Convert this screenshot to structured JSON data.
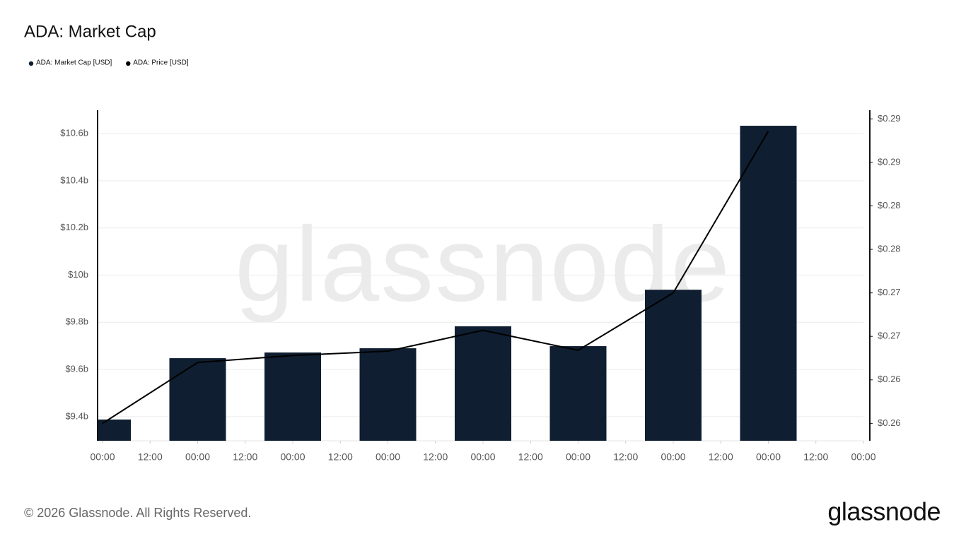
{
  "chart_data": {
    "type": "bar",
    "title": "ADA: Market Cap",
    "x": [
      0,
      24,
      48,
      72,
      96,
      120,
      144,
      168
    ],
    "xlim": [
      -1.25,
      192
    ],
    "xticks": [
      {
        "value": 0,
        "label": "00:00"
      },
      {
        "value": 12,
        "label": "12:00"
      },
      {
        "value": 24,
        "label": "00:00"
      },
      {
        "value": 36,
        "label": "12:00"
      },
      {
        "value": 48,
        "label": "00:00"
      },
      {
        "value": 60,
        "label": "12:00"
      },
      {
        "value": 72,
        "label": "00:00"
      },
      {
        "value": 84,
        "label": "12:00"
      },
      {
        "value": 96,
        "label": "00:00"
      },
      {
        "value": 108,
        "label": "12:00"
      },
      {
        "value": 120,
        "label": "00:00"
      },
      {
        "value": 132,
        "label": "12:00"
      },
      {
        "value": 144,
        "label": "00:00"
      },
      {
        "value": 156,
        "label": "12:00"
      },
      {
        "value": 168,
        "label": "00:00"
      },
      {
        "value": 180,
        "label": "12:00"
      },
      {
        "value": 192,
        "label": "00:00"
      }
    ],
    "ylim": [
      9298000000,
      10699000000
    ],
    "yticks": [
      {
        "value": 9400000000,
        "label": "$9.4b"
      },
      {
        "value": 9600000000,
        "label": "$9.6b"
      },
      {
        "value": 9800000000,
        "label": "$9.8b"
      },
      {
        "value": 10000000000,
        "label": "$10b"
      },
      {
        "value": 10200000000,
        "label": "$10.2b"
      },
      {
        "value": 10400000000,
        "label": "$10.4b"
      },
      {
        "value": 10600000000,
        "label": "$10.6b"
      }
    ],
    "y2lim": [
      0.2555,
      0.2935
    ],
    "y2ticks": [
      {
        "value": 0.2575,
        "label": "$0.26"
      },
      {
        "value": 0.2625,
        "label": "$0.26"
      },
      {
        "value": 0.2675,
        "label": "$0.27"
      },
      {
        "value": 0.2725,
        "label": "$0.27"
      },
      {
        "value": 0.2775,
        "label": "$0.28"
      },
      {
        "value": 0.2825,
        "label": "$0.28"
      },
      {
        "value": 0.2875,
        "label": "$0.29"
      },
      {
        "value": 0.2925,
        "label": "$0.29"
      }
    ],
    "grid": true,
    "series": [
      {
        "name": "ADA: Market Cap [USD]",
        "type": "bar",
        "color": "#0f1e30",
        "values": [
          9388000000,
          9648000000,
          9672000000,
          9690000000,
          9783000000,
          9699000000,
          9938000000,
          10633000000
        ]
      },
      {
        "name": "ADA: Price [USD]",
        "type": "line",
        "axis": "y2",
        "color": "#000000",
        "values": [
          0.2575,
          0.2645,
          0.2653,
          0.2658,
          0.2682,
          0.2659,
          0.2725,
          0.2911
        ]
      }
    ],
    "watermark": "glassnode",
    "footer": "© 2026 Glassnode. All Rights Reserved.",
    "logo": "glassnode"
  }
}
